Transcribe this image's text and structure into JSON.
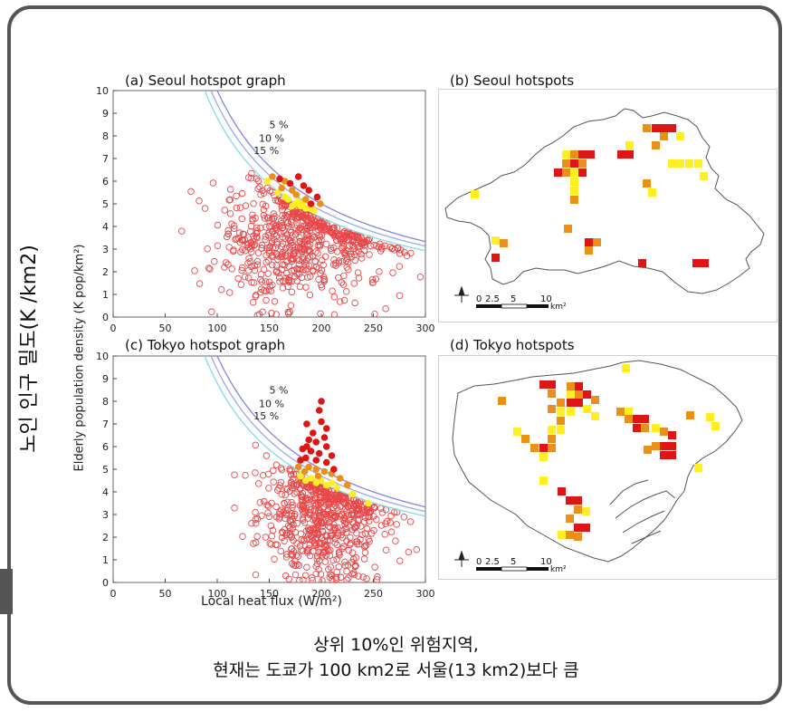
{
  "caption": {
    "line1": "상위 10%인 위험지역,",
    "line2": "현재는 도쿄가 100 km2로 서울(13 km2)보다 큼"
  },
  "shared": {
    "ylabel_korean": "노인 인구 밀도(K /km2)",
    "ylabel": "Elderly population density (K pop/km²)",
    "xlabel": "Local heat flux (W/m²)"
  },
  "colors": {
    "scatter_ring": "#e8484a",
    "hotspot_red": "#dd1515",
    "hotspot_orange": "#e8901a",
    "hotspot_yellow": "#ffee22",
    "contour_5": "#8a7fe0",
    "contour_10": "#9aa8f0",
    "contour_15": "#7fdcea"
  },
  "maps": {
    "seoul": {
      "title": "(b) Seoul hotspots",
      "scale": [
        "0",
        "2.5",
        "5",
        "10"
      ],
      "unit": "km²"
    },
    "tokyo": {
      "title": "(d) Tokyo hotspots",
      "scale": [
        "0",
        "2.5",
        "5",
        "10"
      ],
      "unit": "km²"
    }
  },
  "chart_data": [
    {
      "type": "scatter",
      "title": "(a) Seoul hotspot graph",
      "xlim": [
        0,
        300
      ],
      "ylim": [
        0,
        10
      ],
      "xticks": [
        0,
        50,
        100,
        150,
        200,
        250,
        300
      ],
      "yticks": [
        0,
        1,
        2,
        3,
        4,
        5,
        6,
        7,
        8,
        9,
        10
      ],
      "contours": [
        {
          "label": "5 %",
          "k": 1000
        },
        {
          "label": "10 %",
          "k": 940
        },
        {
          "label": "15 %",
          "k": 880
        }
      ],
      "cloud": {
        "cx": 180,
        "cy": 3.3,
        "sx": 40,
        "sy": 1.4,
        "count": 650
      },
      "hotspots": {
        "red": [
          [
            160,
            6.1
          ],
          [
            178,
            6.2
          ],
          [
            188,
            5.6
          ],
          [
            170,
            5.9
          ],
          [
            196,
            5.3
          ],
          [
            183,
            5.8
          ],
          [
            190,
            5.0
          ]
        ],
        "orange": [
          [
            153,
            6.2
          ],
          [
            162,
            5.7
          ],
          [
            176,
            5.4
          ],
          [
            185,
            5.2
          ],
          [
            172,
            5.6
          ],
          [
            199,
            5.0
          ],
          [
            165,
            6.0
          ]
        ],
        "yellow": [
          [
            148,
            6.0
          ],
          [
            168,
            5.2
          ],
          [
            175,
            5.0
          ],
          [
            180,
            4.9
          ],
          [
            185,
            4.8
          ],
          [
            172,
            4.9
          ],
          [
            178,
            5.1
          ],
          [
            190,
            4.8
          ],
          [
            165,
            5.3
          ],
          [
            182,
            5.0
          ],
          [
            193,
            4.7
          ],
          [
            158,
            5.5
          ]
        ]
      }
    },
    {
      "type": "scatter",
      "title": "(c) Tokyo hotspot graph",
      "xlim": [
        0,
        300
      ],
      "ylim": [
        0,
        10
      ],
      "xticks": [
        0,
        50,
        100,
        150,
        200,
        250,
        300
      ],
      "yticks": [
        0,
        1,
        2,
        3,
        4,
        5,
        6,
        7,
        8,
        9,
        10
      ],
      "contours": [
        {
          "label": "5 %",
          "k": 1000
        },
        {
          "label": "10 %",
          "k": 940
        },
        {
          "label": "15 %",
          "k": 880
        }
      ],
      "cloud": {
        "cx": 200,
        "cy": 2.9,
        "sx": 30,
        "sy": 1.4,
        "count": 640
      },
      "hotspots": {
        "red": [
          [
            200,
            8.0
          ],
          [
            198,
            7.6
          ],
          [
            186,
            7.0
          ],
          [
            200,
            7.1
          ],
          [
            205,
            6.8
          ],
          [
            188,
            6.3
          ],
          [
            195,
            6.2
          ],
          [
            205,
            6.0
          ],
          [
            182,
            5.9
          ],
          [
            190,
            5.8
          ],
          [
            198,
            5.7
          ],
          [
            210,
            5.6
          ],
          [
            185,
            5.5
          ],
          [
            195,
            5.4
          ],
          [
            205,
            5.3
          ],
          [
            180,
            5.4
          ],
          [
            212,
            5.0
          ],
          [
            192,
            6.6
          ],
          [
            203,
            6.4
          ],
          [
            186,
            6.0
          ]
        ],
        "orange": [
          [
            188,
            5.1
          ],
          [
            195,
            5.0
          ],
          [
            203,
            4.9
          ],
          [
            210,
            4.8
          ],
          [
            184,
            4.9
          ],
          [
            197,
            4.7
          ],
          [
            218,
            4.6
          ],
          [
            225,
            4.3
          ],
          [
            178,
            5.1
          ]
        ],
        "yellow": [
          [
            190,
            4.6
          ],
          [
            200,
            4.5
          ],
          [
            210,
            4.4
          ],
          [
            180,
            4.7
          ],
          [
            195,
            4.4
          ],
          [
            205,
            4.3
          ],
          [
            215,
            4.2
          ],
          [
            230,
            3.9
          ],
          [
            245,
            3.5
          ],
          [
            185,
            4.5
          ]
        ]
      }
    }
  ]
}
